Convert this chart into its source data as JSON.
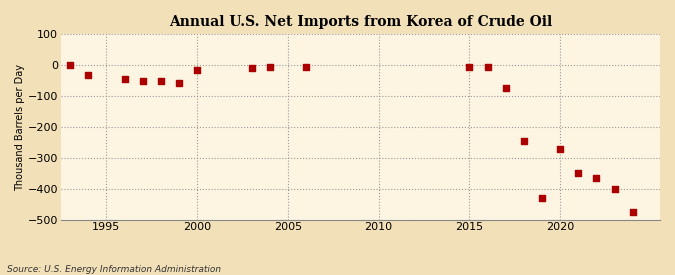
{
  "title": "Annual U.S. Net Imports from Korea of Crude Oil",
  "ylabel": "Thousand Barrels per Day",
  "source": "Source: U.S. Energy Information Administration",
  "background_color": "#f2e0b8",
  "plot_background_color": "#fdf5e2",
  "marker_color": "#aa0000",
  "xlim": [
    1992.5,
    2025.5
  ],
  "ylim": [
    -500,
    100
  ],
  "yticks": [
    100,
    0,
    -100,
    -200,
    -300,
    -400,
    -500
  ],
  "xticks": [
    1995,
    2000,
    2005,
    2010,
    2015,
    2020
  ],
  "years": [
    1993,
    1994,
    1996,
    1997,
    1998,
    1999,
    2000,
    2003,
    2004,
    2006,
    2015,
    2016,
    2017,
    2018,
    2019,
    2020,
    2021,
    2022,
    2023,
    2024
  ],
  "values": [
    0,
    -30,
    -43,
    -50,
    -52,
    -57,
    -15,
    -8,
    -5,
    -5,
    -5,
    -5,
    -75,
    -245,
    -430,
    -270,
    -350,
    -365,
    -400,
    -475
  ]
}
